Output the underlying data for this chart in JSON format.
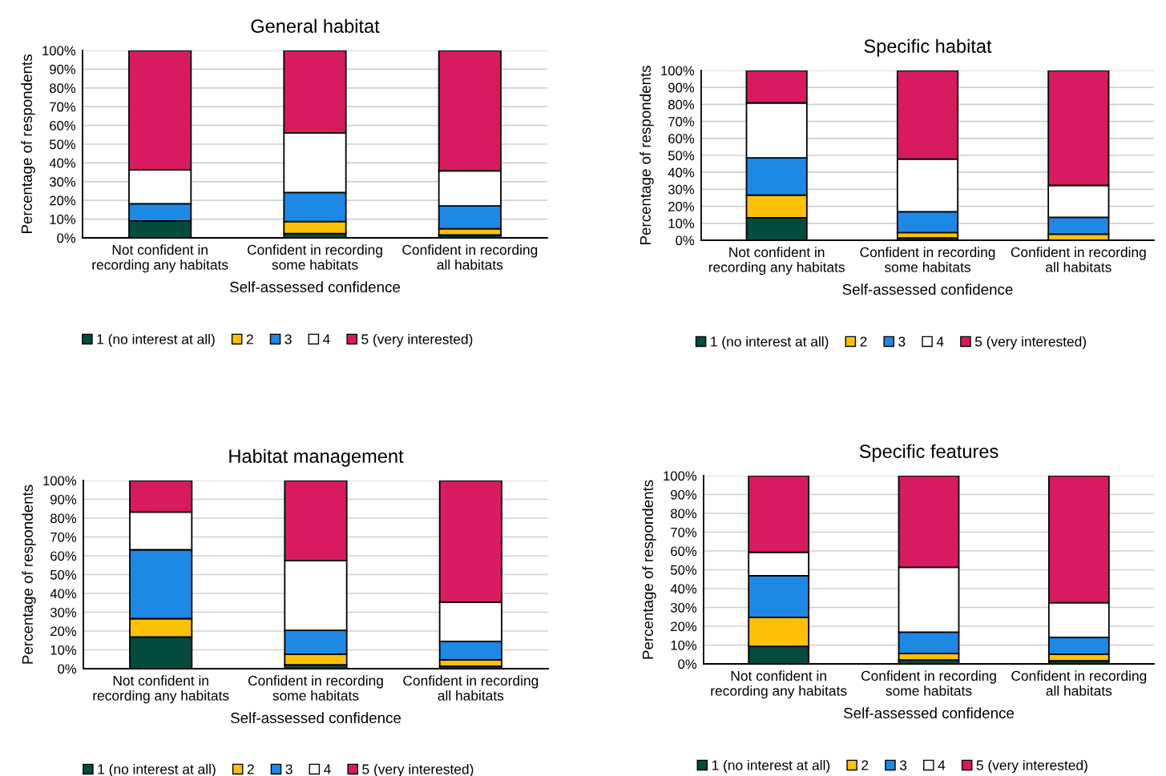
{
  "chart_data": [
    {
      "type": "bar",
      "stacked": true,
      "title": "General habitat",
      "xlabel": "Self-assessed confidence",
      "ylabel": "Percentage of respondents",
      "categories": [
        "Not confident in\nrecording any habitats",
        "Confident in recording\nsome habitats",
        "Confident in recording\nall habitats"
      ],
      "series": [
        {
          "name": "1 (no interest at all)",
          "color": "#034b3d",
          "values": [
            9,
            2.3,
            1.5
          ]
        },
        {
          "name": "2",
          "color": "#ffc107",
          "values": [
            0,
            6.4,
            3.4
          ]
        },
        {
          "name": "3",
          "color": "#1e88e5",
          "values": [
            9.2,
            15.5,
            12.1
          ]
        },
        {
          "name": "4",
          "color": "#ffffff",
          "values": [
            18.1,
            31.8,
            18.8
          ]
        },
        {
          "name": "5 (very interested)",
          "color": "#d81b60",
          "values": [
            63.7,
            44,
            64.2
          ]
        }
      ],
      "ylim": [
        0,
        100
      ],
      "yticks": [
        {
          "value": 0,
          "label": "0%"
        },
        {
          "value": 10,
          "label": "10%"
        },
        {
          "value": 20,
          "label": "20%"
        },
        {
          "value": 30,
          "label": "30%"
        },
        {
          "value": 40,
          "label": "40%"
        },
        {
          "value": 50,
          "label": "50%"
        },
        {
          "value": 60,
          "label": "60%"
        },
        {
          "value": 70,
          "label": "70%"
        },
        {
          "value": 80,
          "label": "80%"
        },
        {
          "value": 90,
          "label": "90%"
        },
        {
          "value": 100,
          "label": "100%"
        }
      ],
      "grid": "y",
      "legend": "bottom"
    },
    {
      "type": "bar",
      "stacked": true,
      "title": "Specific habitat",
      "xlabel": "Self-assessed confidence",
      "ylabel": "Percentage of respondents",
      "categories": [
        "Not confident in\nrecording any habitats",
        "Confident in recording\nsome habitats",
        "Confident in recording\nall habitats"
      ],
      "series": [
        {
          "name": "1 (no interest at all)",
          "color": "#034b3d",
          "values": [
            13.2,
            1.4,
            null
          ]
        },
        {
          "name": "2",
          "color": "#ffc107",
          "values": [
            13.4,
            3.1,
            3.6
          ]
        },
        {
          "name": "3",
          "color": "#1e88e5",
          "values": [
            21.9,
            12.3,
            9.9
          ]
        },
        {
          "name": "4",
          "color": "#ffffff",
          "values": [
            32.4,
            31,
            18.8
          ]
        },
        {
          "name": "5 (very interested)",
          "color": "#d81b60",
          "values": [
            19.1,
            52.2,
            67.7
          ]
        }
      ],
      "ylim": [
        0,
        100
      ],
      "yticks": [
        {
          "value": 0,
          "label": "0%"
        },
        {
          "value": 10,
          "label": "10%"
        },
        {
          "value": 20,
          "label": "20%"
        },
        {
          "value": 30,
          "label": "30%"
        },
        {
          "value": 40,
          "label": "40%"
        },
        {
          "value": 50,
          "label": "50%"
        },
        {
          "value": 60,
          "label": "60%"
        },
        {
          "value": 70,
          "label": "70%"
        },
        {
          "value": 80,
          "label": "80%"
        },
        {
          "value": 90,
          "label": "90%"
        },
        {
          "value": 100,
          "label": "100%"
        }
      ],
      "grid": "y",
      "legend": "bottom"
    },
    {
      "type": "bar",
      "stacked": true,
      "title": "Habitat management",
      "xlabel": "Self-assessed confidence",
      "ylabel": "Percentage of respondents",
      "categories": [
        "Not confident in\nrecording any habitats",
        "Confident in recording\nsome habitats",
        "Confident in recording\nall habitats"
      ],
      "series": [
        {
          "name": "1 (no interest at all)",
          "color": "#034b3d",
          "values": [
            16.8,
            2.1,
            1.3
          ]
        },
        {
          "name": "2",
          "color": "#ffc107",
          "values": [
            9.8,
            5.6,
            3.4
          ]
        },
        {
          "name": "3",
          "color": "#1e88e5",
          "values": [
            36.6,
            12.7,
            9.8
          ]
        },
        {
          "name": "4",
          "color": "#ffffff",
          "values": [
            20.1,
            37,
            20.8
          ]
        },
        {
          "name": "5 (very interested)",
          "color": "#d81b60",
          "values": [
            16.7,
            42.6,
            64.7
          ]
        }
      ],
      "ylim": [
        0,
        100
      ],
      "yticks": [
        {
          "value": 0,
          "label": "0%"
        },
        {
          "value": 10,
          "label": "10%"
        },
        {
          "value": 20,
          "label": "20%"
        },
        {
          "value": 30,
          "label": "30%"
        },
        {
          "value": 40,
          "label": "40%"
        },
        {
          "value": 50,
          "label": "50%"
        },
        {
          "value": 60,
          "label": "60%"
        },
        {
          "value": 70,
          "label": "70%"
        },
        {
          "value": 80,
          "label": "80%"
        },
        {
          "value": 90,
          "label": "90%"
        },
        {
          "value": 100,
          "label": "100%"
        }
      ],
      "grid": "y",
      "legend": "bottom"
    },
    {
      "type": "bar",
      "stacked": true,
      "title": "Specific features",
      "xlabel": "Self-assessed confidence",
      "ylabel": "Percentage of respondents",
      "categories": [
        "Not confident in\nrecording any habitats",
        "Confident in recording\nsome habitats",
        "Confident in recording\nall habitats"
      ],
      "series": [
        {
          "name": "1 (no interest at all)",
          "color": "#034b3d",
          "values": [
            9.3,
            2.1,
            1.6
          ]
        },
        {
          "name": "2",
          "color": "#ffc107",
          "values": [
            15.4,
            3.4,
            3.6
          ]
        },
        {
          "name": "3",
          "color": "#1e88e5",
          "values": [
            22.1,
            11.4,
            8.9
          ]
        },
        {
          "name": "4",
          "color": "#ffffff",
          "values": [
            12.5,
            34.4,
            18.4
          ]
        },
        {
          "name": "5 (very interested)",
          "color": "#d81b60",
          "values": [
            40.7,
            48.7,
            67.5
          ]
        }
      ],
      "ylim": [
        0,
        100
      ],
      "yticks": [
        {
          "value": 0,
          "label": "0%"
        },
        {
          "value": 10,
          "label": "10%"
        },
        {
          "value": 20,
          "label": "20%"
        },
        {
          "value": 30,
          "label": "30%"
        },
        {
          "value": 40,
          "label": "40%"
        },
        {
          "value": 50,
          "label": "50%"
        },
        {
          "value": 60,
          "label": "60%"
        },
        {
          "value": 70,
          "label": "70%"
        },
        {
          "value": 80,
          "label": "80%"
        },
        {
          "value": 90,
          "label": "90%"
        },
        {
          "value": 100,
          "label": "100%"
        }
      ],
      "grid": "y",
      "legend": "bottom"
    }
  ]
}
